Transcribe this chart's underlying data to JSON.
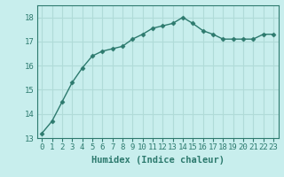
{
  "x": [
    0,
    1,
    2,
    3,
    4,
    5,
    6,
    7,
    8,
    9,
    10,
    11,
    12,
    13,
    14,
    15,
    16,
    17,
    18,
    19,
    20,
    21,
    22,
    23
  ],
  "y": [
    13.2,
    13.7,
    14.5,
    15.3,
    15.9,
    16.4,
    16.6,
    16.7,
    16.8,
    17.1,
    17.3,
    17.55,
    17.65,
    17.75,
    18.0,
    17.75,
    17.45,
    17.3,
    17.1,
    17.1,
    17.1,
    17.1,
    17.3,
    17.3
  ],
  "line_color": "#2d7a6e",
  "bg_color": "#c8eeed",
  "grid_color": "#b0dbd8",
  "xlabel": "Humidex (Indice chaleur)",
  "ylim": [
    13,
    18.5
  ],
  "xlim": [
    -0.5,
    23.5
  ],
  "yticks": [
    13,
    14,
    15,
    16,
    17,
    18
  ],
  "xticks": [
    0,
    1,
    2,
    3,
    4,
    5,
    6,
    7,
    8,
    9,
    10,
    11,
    12,
    13,
    14,
    15,
    16,
    17,
    18,
    19,
    20,
    21,
    22,
    23
  ],
  "xtick_labels": [
    "0",
    "1",
    "2",
    "3",
    "4",
    "5",
    "6",
    "7",
    "8",
    "9",
    "10",
    "11",
    "12",
    "13",
    "14",
    "15",
    "16",
    "17",
    "18",
    "19",
    "20",
    "21",
    "22",
    "23"
  ],
  "marker": "D",
  "marker_size": 2.5,
  "line_width": 1.0,
  "tick_fontsize": 6.5,
  "label_fontsize": 7.5
}
